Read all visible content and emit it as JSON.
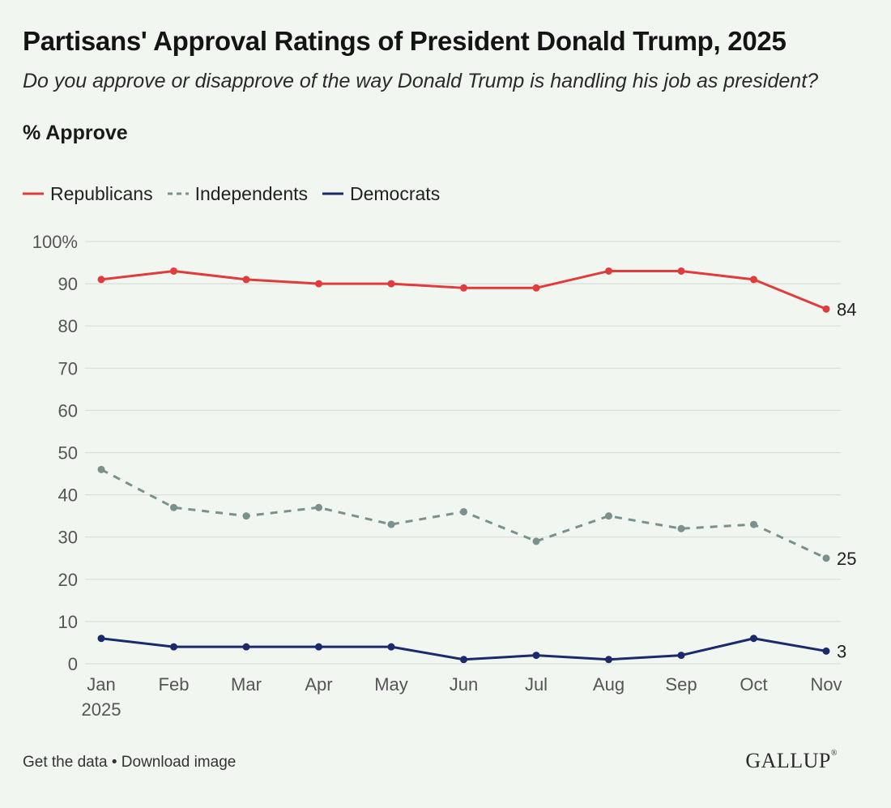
{
  "title": "Partisans' Approval Ratings of President Donald Trump, 2025",
  "subtitle": "Do you approve or disapprove of the way Donald Trump is handling his job as president?",
  "measure": "% Approve",
  "colors": {
    "republicans": "#e03c3c",
    "independents": "#7a918c",
    "democrats": "#1a2a6c",
    "grid": "#d9ded8",
    "axis_text": "#555555"
  },
  "chart_data": {
    "type": "line",
    "x": [
      "Jan",
      "Feb",
      "Mar",
      "Apr",
      "May",
      "Jun",
      "Jul",
      "Aug",
      "Sep",
      "Oct",
      "Nov"
    ],
    "x_sublabel": "2025",
    "yticks": [
      0,
      10,
      20,
      30,
      40,
      50,
      60,
      70,
      80,
      90,
      100
    ],
    "ytick_labels": [
      "0",
      "10",
      "20",
      "30",
      "40",
      "50",
      "60",
      "70",
      "80",
      "90",
      "100%"
    ],
    "ylim": [
      0,
      100
    ],
    "grid": true,
    "legend_position": "top-left",
    "series": [
      {
        "name": "Republicans",
        "key": "republicans",
        "style": "solid",
        "values": [
          91,
          93,
          91,
          90,
          90,
          89,
          89,
          93,
          93,
          91,
          84
        ],
        "end_label": "84"
      },
      {
        "name": "Independents",
        "key": "independents",
        "style": "dashed",
        "values": [
          46,
          37,
          35,
          37,
          33,
          36,
          29,
          35,
          32,
          33,
          25
        ],
        "end_label": "25"
      },
      {
        "name": "Democrats",
        "key": "democrats",
        "style": "solid",
        "values": [
          6,
          4,
          4,
          4,
          4,
          1,
          2,
          1,
          2,
          6,
          3
        ],
        "end_label": "3"
      }
    ]
  },
  "footer": {
    "get_data": "Get the data",
    "separator": " • ",
    "download": "Download image"
  },
  "logo": "GALLUP"
}
